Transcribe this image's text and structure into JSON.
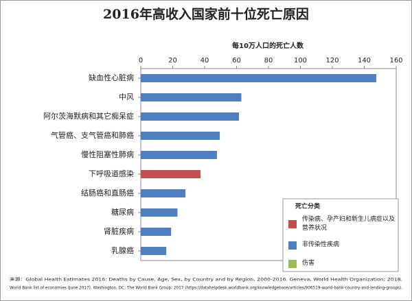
{
  "chart_data": {
    "type": "barh",
    "title": "2016年高收入国家前十位死亡原因",
    "x_label": "每10万人口的死亡人数",
    "categories": [
      "缺血性心脏病",
      "中风",
      "阿尔茨海默病和其它痴呆症",
      "气管癌、支气管癌和肺癌",
      "慢性阻塞性肺病",
      "下呼吸道感染",
      "结肠癌和直肠癌",
      "糖尿病",
      "肾脏疾病",
      "乳腺癌"
    ],
    "values": [
      147.5,
      63,
      61.5,
      49.5,
      47.7,
      37.4,
      28,
      23,
      19,
      16
    ],
    "colors": [
      "#4f7fc0",
      "#4f7fc0",
      "#4f7fc0",
      "#4f7fc0",
      "#4f7fc0",
      "#c0504d",
      "#4f7fc0",
      "#4f7fc0",
      "#4f7fc0",
      "#4f7fc0"
    ],
    "xlim": [
      0,
      160
    ],
    "xticks": [
      0,
      20,
      40,
      60,
      80,
      100,
      120,
      140,
      160
    ],
    "legend": {
      "title": "死亡分类",
      "items": [
        {
          "name": "传染病、孕产妇和新生儿病症以及营养状况",
          "color": "#c0504d"
        },
        {
          "name": "非传染性疾病",
          "color": "#4f7fc0"
        },
        {
          "name": "伤害",
          "color": "#9bbb59"
        }
      ]
    },
    "source": [
      "来源：Global Health Estimates 2016: Deaths by Cause, Age, Sex, by Country and by Region, 2000-2016. Geneva, World Health Organization; 2018.",
      "World Bank list of economies (June 2017). Washington, DC: The World Bank Group; 2017 (https://datahelpdesk.worldbank.org/knowledgebase/articles/906519-world-bank-country-and-lending-groups)."
    ]
  }
}
